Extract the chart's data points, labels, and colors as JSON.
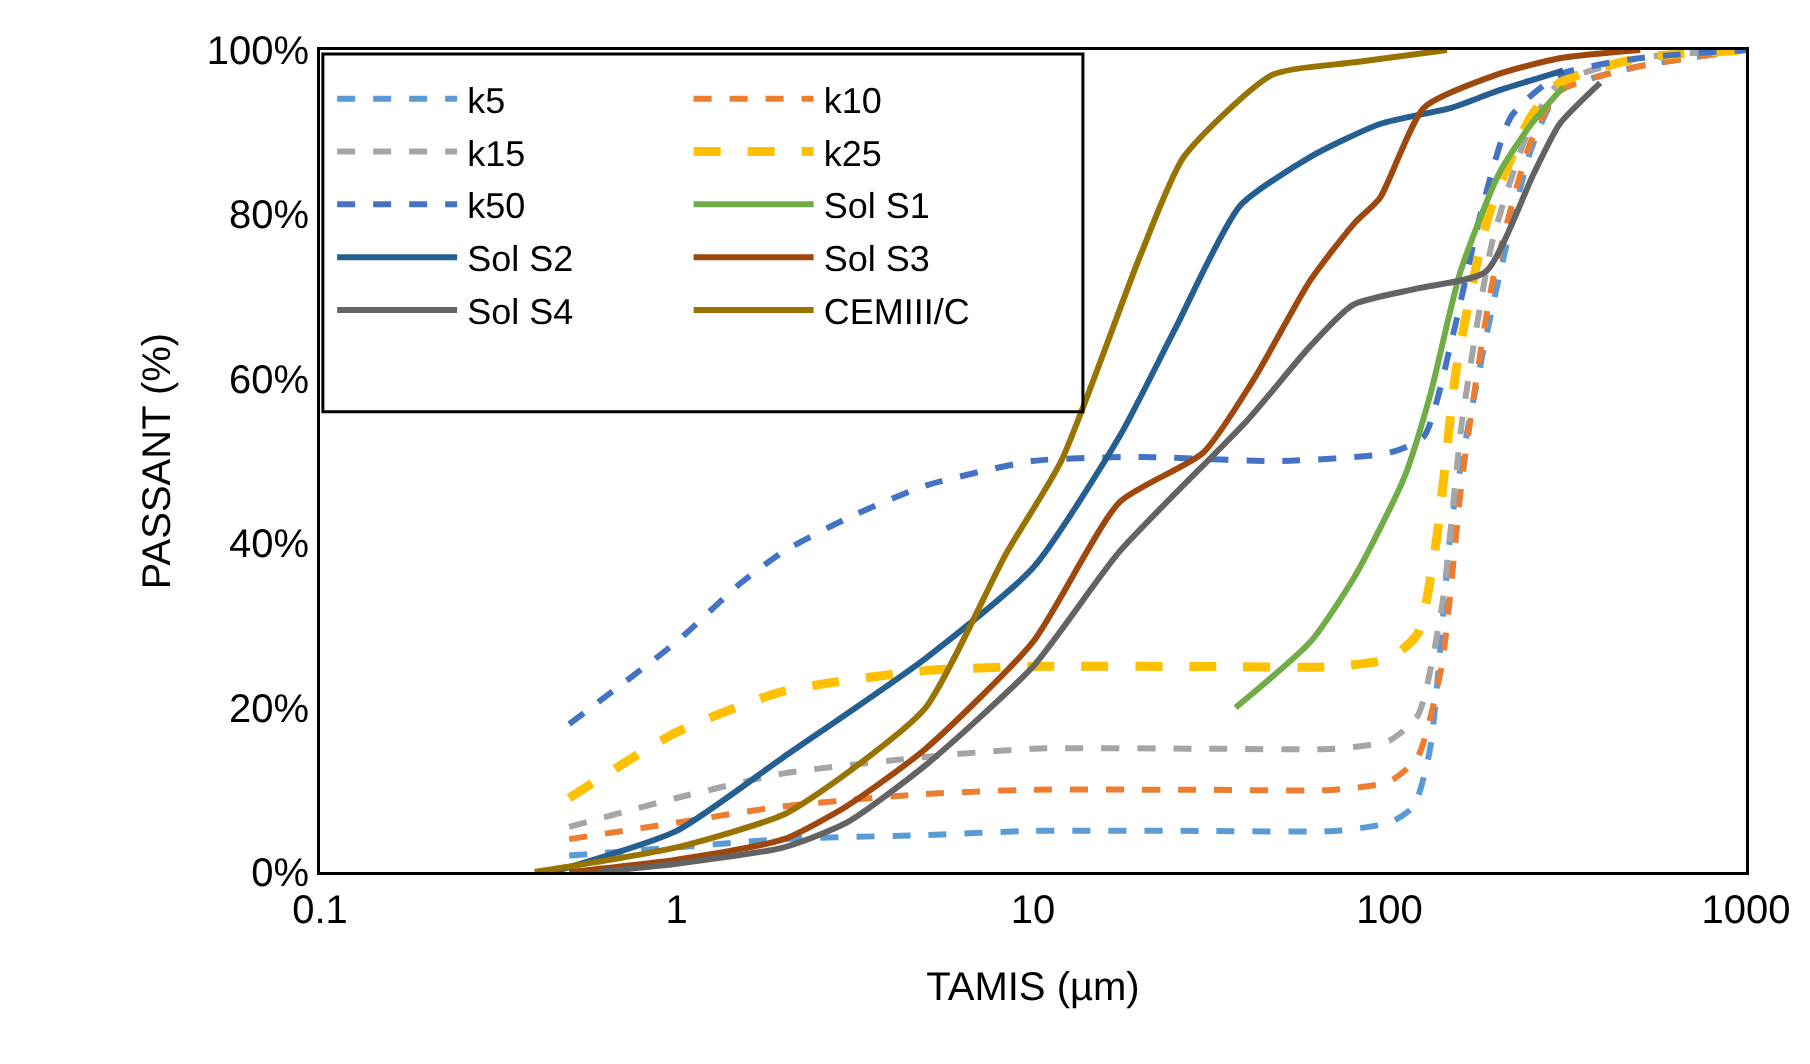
{
  "chart_data": {
    "type": "line",
    "xlabel": "TAMIS (µm)",
    "ylabel": "PASSANT (%)",
    "log": "x",
    "xlim": [
      0.1,
      1000
    ],
    "xticks": [
      0.1,
      1,
      10,
      100,
      1000
    ],
    "ylim": [
      0,
      100
    ],
    "yticks": [
      {
        "value": 0,
        "label": "0%"
      },
      {
        "value": 20,
        "label": "20%"
      },
      {
        "value": 40,
        "label": "40%"
      },
      {
        "value": 60,
        "label": "60%"
      },
      {
        "value": 80,
        "label": "80%"
      },
      {
        "value": 100,
        "label": "100%"
      }
    ],
    "grid": false,
    "legend": "top left",
    "marker": "none",
    "series": [
      {
        "name": "k5",
        "color": "#5b9bd5",
        "line_style": "dashed",
        "x": [
          0.5,
          1,
          2,
          5,
          10,
          30,
          70,
          100,
          117,
          130,
          151,
          195,
          250,
          300,
          500,
          1000
        ],
        "values": [
          2,
          3,
          4,
          4.5,
          5,
          5,
          5,
          6,
          8,
          15,
          44,
          69,
          88,
          95,
          98,
          100
        ]
      },
      {
        "name": "k10",
        "color": "#ed7d31",
        "line_style": "dashed",
        "x": [
          0.5,
          1,
          2,
          5,
          10,
          30,
          70,
          100,
          120,
          140,
          160,
          195,
          250,
          300,
          500,
          1000
        ],
        "values": [
          4,
          6,
          8,
          9.5,
          10,
          10,
          10,
          11,
          14,
          25,
          48,
          72,
          89,
          95,
          98,
          100
        ]
      },
      {
        "name": "k15",
        "color": "#a5a5a5",
        "line_style": "dashed",
        "x": [
          0.5,
          1,
          2,
          5,
          10,
          30,
          70,
          100,
          120,
          140,
          160,
          195,
          250,
          300,
          500,
          1000
        ],
        "values": [
          5.5,
          9,
          12,
          14,
          15,
          15,
          15,
          16,
          19,
          32,
          55,
          77,
          91,
          96,
          99,
          100
        ]
      },
      {
        "name": "k25",
        "color": "#ffc000",
        "line_style": "dashed",
        "x": [
          0.5,
          1,
          2,
          5,
          10,
          30,
          70,
          100,
          120,
          135,
          155,
          190,
          250,
          300,
          500,
          1000
        ],
        "values": [
          9,
          17,
          22,
          24.5,
          25,
          25,
          25,
          26,
          29,
          40,
          62,
          80,
          92,
          96,
          99,
          100
        ]
      },
      {
        "name": "k50",
        "color": "#4472c4",
        "line_style": "dashed",
        "x": [
          0.5,
          1,
          1.5,
          2,
          3,
          5,
          10,
          20,
          50,
          100,
          125,
          150,
          180,
          220,
          300,
          500,
          1000
        ],
        "values": [
          18,
          28,
          35,
          39,
          43,
          47,
          50,
          50.5,
          50,
          51,
          53,
          65,
          80,
          92,
          97,
          99,
          100
        ]
      },
      {
        "name": "Sol S1",
        "color": "#70ad47",
        "line_style": "solid",
        "x": [
          37,
          60,
          80,
          110,
          130,
          158,
          203,
          250,
          307
        ],
        "values": [
          20,
          28,
          36,
          48,
          58,
          73,
          85,
          91,
          95.5
        ]
      },
      {
        "name": "Sol S2",
        "color": "#255e91",
        "line_style": "solid",
        "x": [
          0.45,
          1,
          2,
          5,
          10,
          17.5,
          25,
          38,
          60,
          94,
          150,
          200,
          307
        ],
        "values": [
          0,
          5,
          14,
          26,
          37,
          53,
          66,
          81,
          87,
          91,
          93,
          95,
          97.5
        ]
      },
      {
        "name": "Sol S3",
        "color": "#9e480e",
        "line_style": "solid",
        "x": [
          0.5,
          1,
          2,
          3,
          5,
          10,
          17.5,
          30,
          41.7,
          60,
          80,
          94,
          125,
          200,
          300,
          505
        ],
        "values": [
          0,
          1.5,
          4,
          8,
          15,
          28,
          45,
          51,
          60,
          72,
          79,
          82,
          93,
          97,
          99,
          100
        ]
      },
      {
        "name": "Sol S4",
        "color": "#636363",
        "line_style": "solid",
        "x": [
          0.6,
          1,
          2,
          3,
          5,
          10,
          17.5,
          40,
          60,
          79,
          120,
          186,
          254,
          300,
          390
        ],
        "values": [
          0,
          1,
          3,
          6,
          13,
          25,
          39,
          55,
          64,
          69,
          71,
          73,
          85,
          91,
          96
        ]
      },
      {
        "name": "CEMIII/C",
        "color": "#997300",
        "line_style": "solid",
        "x": [
          0.4,
          1,
          2,
          3,
          5,
          8.4,
          12,
          20,
          26.5,
          47,
          80,
          145
        ],
        "values": [
          0,
          3,
          7,
          12,
          20,
          38.7,
          50,
          75,
          87,
          97,
          98.5,
          100
        ]
      }
    ]
  }
}
